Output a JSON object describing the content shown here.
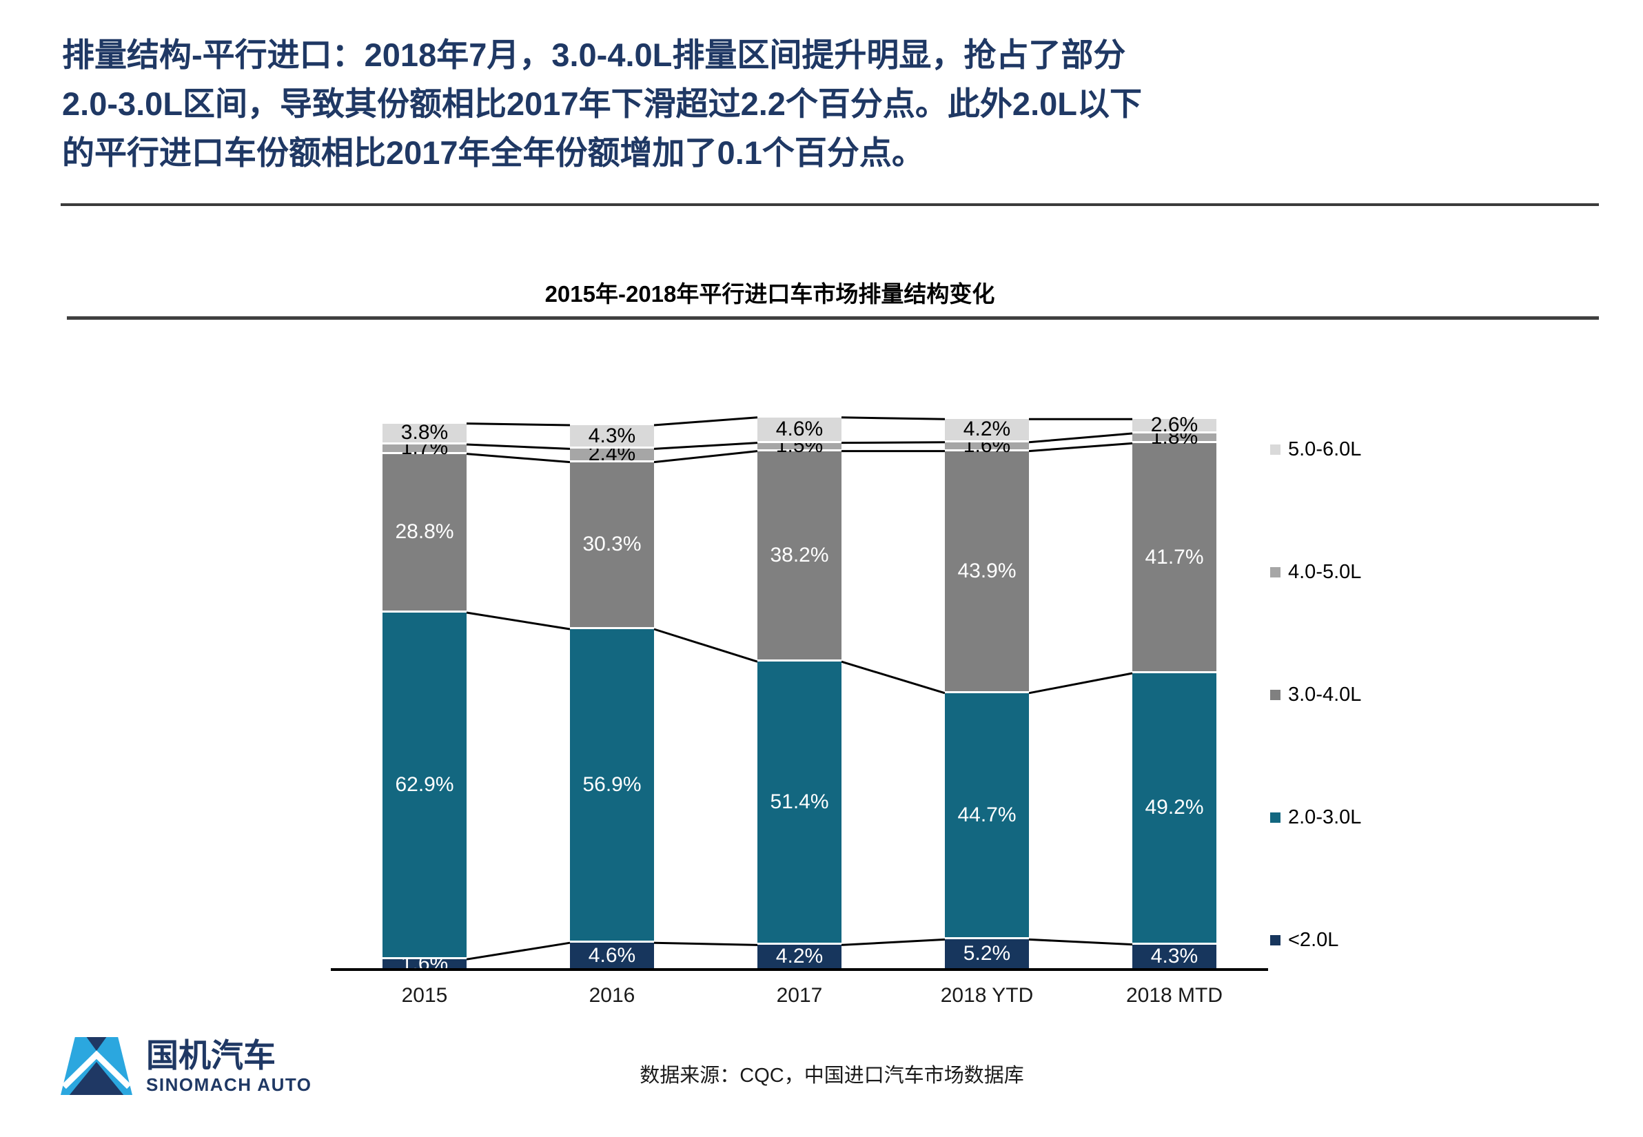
{
  "header": {
    "title_lines": [
      "排量结构-平行进口：2018年7月，3.0-4.0L排量区间提升明显，抢占了部分",
      "2.0-3.0L区间，导致其份额相比2017年下滑超过2.2个百分点。此外2.0L以下",
      "的平行进口车份额相比2017年全年份额增加了0.1个百分点。"
    ],
    "title_color": "#1F3864"
  },
  "chart": {
    "title": "2015年-2018年平行进口车市场排量结构变化"
  },
  "chart_data": {
    "type": "bar",
    "stacked": true,
    "orientation": "vertical",
    "unit": "%",
    "ylim": [
      0,
      100
    ],
    "grid": false,
    "legend_position": "right",
    "connector_lines": true,
    "categories": [
      "2015",
      "2016",
      "2017",
      "2018 YTD",
      "2018 MTD"
    ],
    "series": [
      {
        "name": "<2.0L",
        "color": "#17365D",
        "label_color": "#FFFFFF",
        "values": [
          1.6,
          4.6,
          4.2,
          5.2,
          4.3
        ]
      },
      {
        "name": "2.0-3.0L",
        "color": "#136780",
        "label_color": "#FFFFFF",
        "values": [
          62.9,
          56.9,
          51.4,
          44.7,
          49.2
        ]
      },
      {
        "name": "3.0-4.0L",
        "color": "#808080",
        "label_color": "#FFFFFF",
        "values": [
          28.8,
          30.3,
          38.2,
          43.9,
          41.7
        ]
      },
      {
        "name": "4.0-5.0L",
        "color": "#A6A6A6",
        "label_color": "#000000",
        "values": [
          1.7,
          2.4,
          1.5,
          1.6,
          1.8
        ]
      },
      {
        "name": "5.0-6.0L",
        "color": "#D9D9D9",
        "label_color": "#000000",
        "values": [
          3.8,
          4.3,
          4.6,
          4.2,
          2.6
        ]
      }
    ],
    "legend_order_top_to_bottom": [
      "5.0-6.0L",
      "4.0-5.0L",
      "3.0-4.0L",
      "2.0-3.0L",
      "<2.0L"
    ]
  },
  "footer": {
    "source": "数据来源：CQC，中国进口汽车市场数据库",
    "logo_cn": "国机汽车",
    "logo_en": "SINOMACH AUTO",
    "logo_navy": "#1F3864",
    "logo_blue": "#2BA7DF"
  }
}
